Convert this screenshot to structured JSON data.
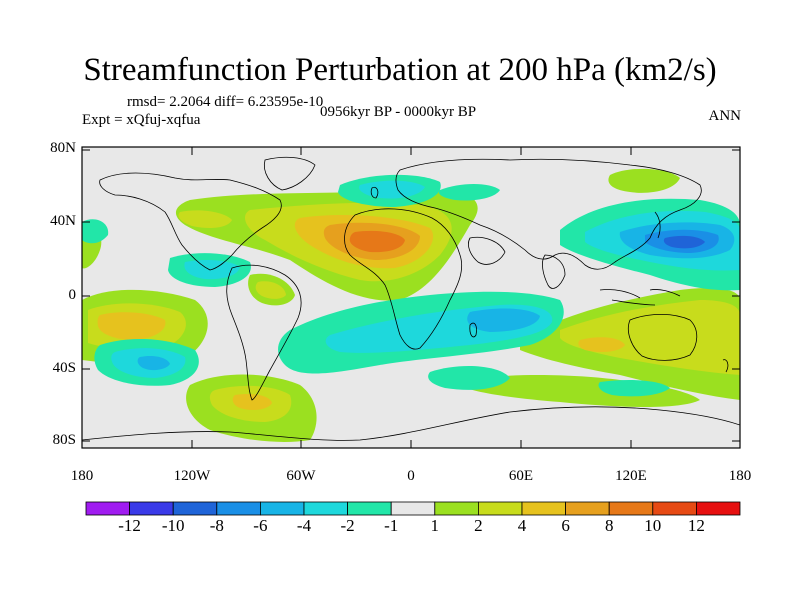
{
  "title": "Streamfunction Perturbation at 200 hPa (km2/s)",
  "stats": "rmsd= 2.2064 diff= 6.23595e-10",
  "experiment": "Expt = xQfuj-xqfua",
  "period": "0956kyr BP - 0000kyr BP",
  "season": "ANN",
  "lat_labels": [
    "80N",
    "40N",
    "0",
    "40S",
    "80S"
  ],
  "lon_labels": [
    "180",
    "120W",
    "60W",
    "0",
    "60E",
    "120E",
    "180"
  ],
  "colorbar": {
    "labels": [
      "-12",
      "-10",
      "-8",
      "-6",
      "-4",
      "-2",
      "-1",
      "1",
      "2",
      "4",
      "6",
      "8",
      "10",
      "12"
    ],
    "colors": [
      "#a01cf0",
      "#3a3ae8",
      "#1f64d8",
      "#1a8fe6",
      "#18b4e6",
      "#1ed8dc",
      "#22e6a8",
      "#e8e8e8",
      "#9be020",
      "#c8dc1c",
      "#e6c21e",
      "#e6a01e",
      "#e67818",
      "#e64a14",
      "#e61010"
    ]
  },
  "chart_data": {
    "type": "contour-map",
    "variable": "Streamfunction Perturbation",
    "level": "200 hPa",
    "units": "km2/s",
    "x_range": [
      -180,
      180
    ],
    "y_range": [
      -90,
      90
    ],
    "levels": [
      -12,
      -10,
      -8,
      -6,
      -4,
      -2,
      -1,
      1,
      2,
      4,
      6,
      8,
      10,
      12
    ],
    "features": [
      {
        "region": "North Africa / Atlantic",
        "lon": -10,
        "lat": 28,
        "value": 7
      },
      {
        "region": "North Pacific (east of Japan)",
        "lon": 150,
        "lat": 30,
        "value": -8
      },
      {
        "region": "Southern Indian Ocean",
        "lon": 45,
        "lat": -15,
        "value": -4
      },
      {
        "region": "South Pacific",
        "lon": -150,
        "lat": -15,
        "value": 5
      },
      {
        "region": "South Pacific subtropics",
        "lon": -140,
        "lat": -38,
        "value": -4
      },
      {
        "region": "Australia",
        "lon": 130,
        "lat": -30,
        "value": 4
      },
      {
        "region": "North Atlantic high latitudes",
        "lon": -35,
        "lat": 60,
        "value": -3
      },
      {
        "region": "South Atlantic / Drake",
        "lon": -70,
        "lat": -62,
        "value": 3
      }
    ]
  }
}
